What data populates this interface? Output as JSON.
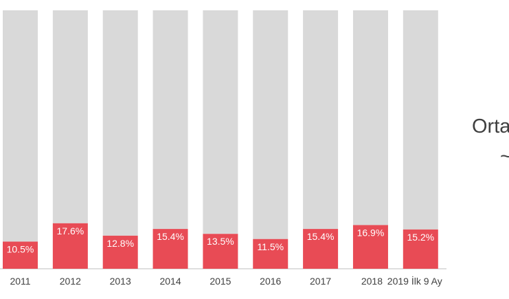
{
  "chart_data": {
    "type": "bar",
    "stacked_to_full": true,
    "categories": [
      "2011",
      "2012",
      "2013",
      "2014",
      "2015",
      "2016",
      "2017",
      "2018",
      "2019 İlk 9 Ay"
    ],
    "values": [
      10.5,
      17.6,
      12.8,
      15.4,
      13.5,
      11.5,
      15.4,
      16.9,
      15.2
    ],
    "value_labels": [
      "10.5%",
      "17.6%",
      "12.8%",
      "15.4%",
      "13.5%",
      "11.5%",
      "15.4%",
      "16.9%",
      "15.2%"
    ],
    "ylim": [
      0,
      100
    ],
    "grid": false,
    "legend": "none",
    "colors": {
      "value": "#e84b55",
      "remainder": "#d9d9d9",
      "axis": "#bfbfbf"
    }
  },
  "side_text": {
    "line1": "Orta",
    "line2": "~"
  }
}
